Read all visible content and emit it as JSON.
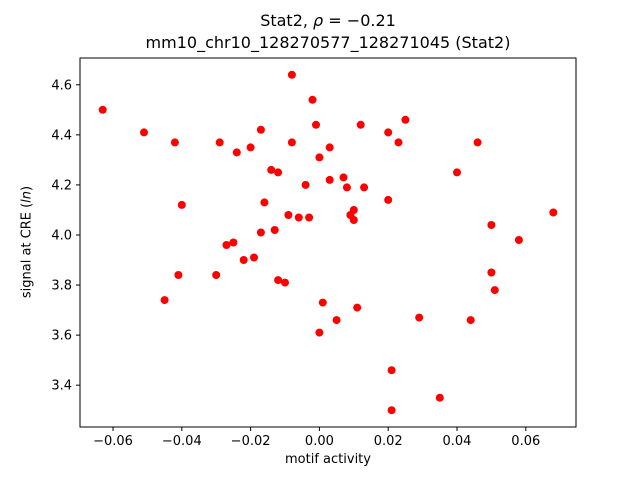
{
  "figure": {
    "title_line1": {
      "prefix": "Stat2, ",
      "rho": "ρ",
      "suffix": " = −0.21"
    },
    "title_line2": "mm10_chr10_128270577_128271045 (Stat2)",
    "xlabel": "motif activity",
    "ylabel": {
      "prefix": "signal at CRE (",
      "italic": "ln",
      "suffix": ")"
    }
  },
  "chart_data": {
    "type": "scatter",
    "title": "Stat2, ρ = −0.21",
    "subtitle": "mm10_chr10_128270577_128271045 (Stat2)",
    "xlabel": "motif activity",
    "ylabel": "signal at CRE (ln)",
    "legend": null,
    "grid": false,
    "marker_color": "#ff0000",
    "marker_diameter_px": 8,
    "xlim": [
      -0.0696,
      0.0746
    ],
    "ylim": [
      3.233,
      4.707
    ],
    "x_ticks": [
      -0.06,
      -0.04,
      -0.02,
      0.0,
      0.02,
      0.04,
      0.06
    ],
    "x_tick_labels": [
      "−0.06",
      "−0.04",
      "−0.02",
      "0.00",
      "0.02",
      "0.04",
      "0.06"
    ],
    "y_ticks": [
      3.4,
      3.6,
      3.8,
      4.0,
      4.2,
      4.4,
      4.6
    ],
    "y_tick_labels": [
      "3.4",
      "3.6",
      "3.8",
      "4.0",
      "4.2",
      "4.4",
      "4.6"
    ],
    "points": [
      [
        -0.063,
        4.5
      ],
      [
        -0.051,
        4.41
      ],
      [
        -0.045,
        3.74
      ],
      [
        -0.042,
        4.37
      ],
      [
        -0.041,
        3.84
      ],
      [
        -0.04,
        4.12
      ],
      [
        -0.03,
        3.84
      ],
      [
        -0.029,
        4.37
      ],
      [
        -0.027,
        3.96
      ],
      [
        -0.025,
        3.97
      ],
      [
        -0.024,
        4.33
      ],
      [
        -0.022,
        3.9
      ],
      [
        -0.02,
        4.35
      ],
      [
        -0.019,
        3.91
      ],
      [
        -0.017,
        4.42
      ],
      [
        -0.017,
        4.01
      ],
      [
        -0.016,
        4.13
      ],
      [
        -0.014,
        4.26
      ],
      [
        -0.013,
        4.02
      ],
      [
        -0.012,
        4.25
      ],
      [
        -0.012,
        3.82
      ],
      [
        -0.01,
        3.81
      ],
      [
        -0.009,
        4.08
      ],
      [
        -0.008,
        4.37
      ],
      [
        -0.008,
        4.64
      ],
      [
        -0.006,
        4.07
      ],
      [
        -0.004,
        4.2
      ],
      [
        -0.003,
        4.07
      ],
      [
        -0.002,
        4.54
      ],
      [
        -0.001,
        4.44
      ],
      [
        0.0,
        4.31
      ],
      [
        0.0,
        3.61
      ],
      [
        0.001,
        3.73
      ],
      [
        0.003,
        4.35
      ],
      [
        0.003,
        4.22
      ],
      [
        0.005,
        3.66
      ],
      [
        0.007,
        4.23
      ],
      [
        0.008,
        4.19
      ],
      [
        0.009,
        4.08
      ],
      [
        0.01,
        4.06
      ],
      [
        0.01,
        4.1
      ],
      [
        0.011,
        3.71
      ],
      [
        0.012,
        4.44
      ],
      [
        0.013,
        4.19
      ],
      [
        0.02,
        4.41
      ],
      [
        0.02,
        4.14
      ],
      [
        0.021,
        3.46
      ],
      [
        0.021,
        3.3
      ],
      [
        0.023,
        4.37
      ],
      [
        0.025,
        4.46
      ],
      [
        0.029,
        3.67
      ],
      [
        0.035,
        3.35
      ],
      [
        0.04,
        4.25
      ],
      [
        0.044,
        3.66
      ],
      [
        0.046,
        4.37
      ],
      [
        0.05,
        4.04
      ],
      [
        0.05,
        3.85
      ],
      [
        0.051,
        3.78
      ],
      [
        0.058,
        3.98
      ],
      [
        0.068,
        4.09
      ]
    ]
  }
}
